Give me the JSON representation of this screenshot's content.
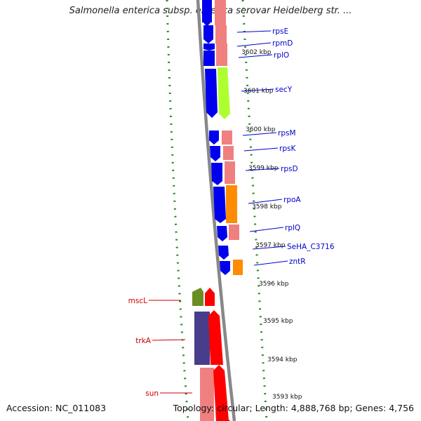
{
  "title": "Salmonella enterica subsp. enterica serovar Heidelberg str. ...",
  "footer": {
    "accession": "Accession: NC_011083",
    "stats": "Topology: circular; Length: 4,888,768 bp; Genes: 4,756"
  },
  "colors": {
    "backbone": "#888888",
    "dotted_track": "#228b22",
    "gene_blue": "#0000ee",
    "gene_pink": "#f08080",
    "gene_lime": "#adff2f",
    "gene_orange": "#ff8c00",
    "gene_olive": "#6b8e23",
    "gene_red": "#ff0000",
    "gene_slate": "#483d8b",
    "label_blue": "#0000cc",
    "label_red": "#cc0000"
  },
  "ticks": [
    "3602 kbp",
    "3601 kbp",
    "3600 kbp",
    "3599 kbp",
    "3598 kbp",
    "3597 kbp",
    "3596 kbp",
    "3595 kbp",
    "3594 kbp",
    "3593 kbp"
  ],
  "right_gene_labels": [
    "rpsE",
    "rpmD",
    "rplO",
    "secY",
    "rpsM",
    "rpsK",
    "rpsD",
    "rpoA",
    "rplQ",
    "SeHA_C3716",
    "zntR"
  ],
  "left_gene_labels": [
    "mscL",
    "trkA",
    "sun"
  ]
}
